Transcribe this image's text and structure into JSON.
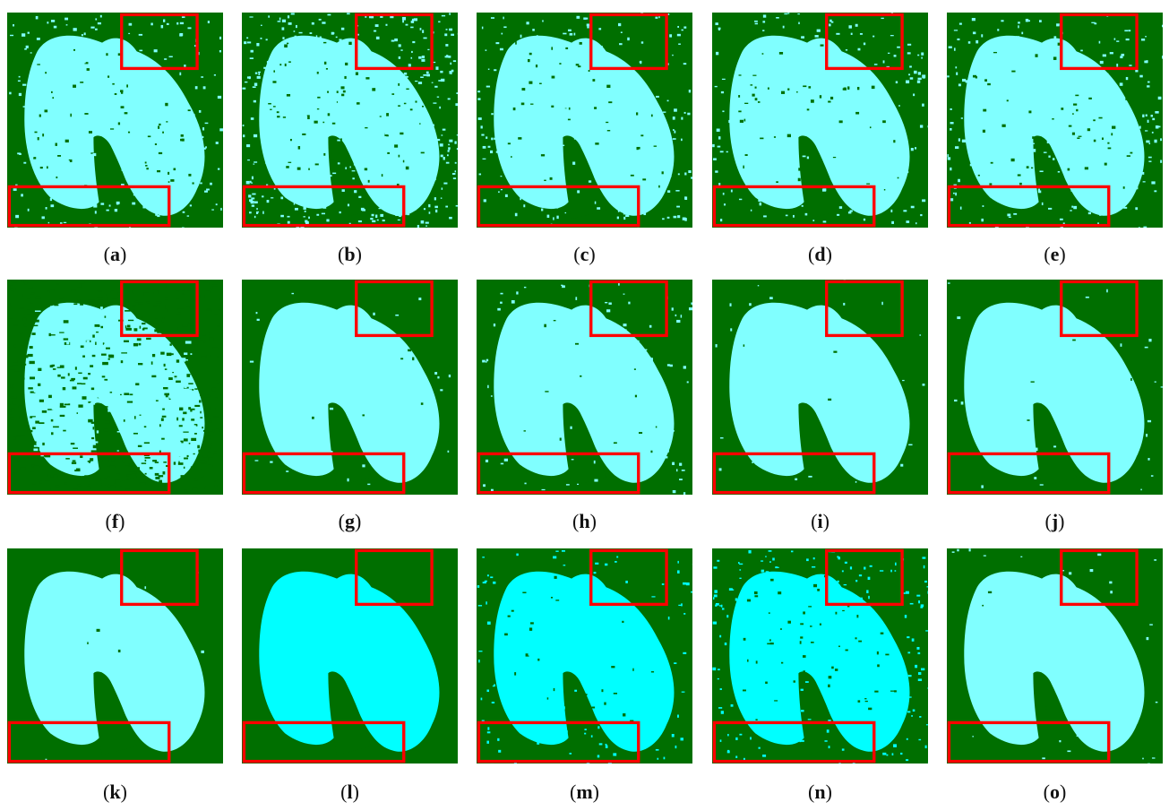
{
  "colors": {
    "land": "#006f00",
    "water_light": "#80ffff",
    "water_bright": "#00ffff",
    "highlight_box": "#ff0000",
    "caption_text": "#111111"
  },
  "panels": [
    {
      "letter": "a",
      "style": "noisy",
      "water": "light"
    },
    {
      "letter": "b",
      "style": "very-noisy",
      "water": "light"
    },
    {
      "letter": "c",
      "style": "noisy",
      "water": "light"
    },
    {
      "letter": "d",
      "style": "noisy",
      "water": "light"
    },
    {
      "letter": "e",
      "style": "noisy",
      "water": "light"
    },
    {
      "letter": "f",
      "style": "speckled",
      "water": "light"
    },
    {
      "letter": "g",
      "style": "clean",
      "water": "light"
    },
    {
      "letter": "h",
      "style": "slightly-noisy",
      "water": "light"
    },
    {
      "letter": "i",
      "style": "clean",
      "water": "light"
    },
    {
      "letter": "j",
      "style": "clean",
      "water": "light"
    },
    {
      "letter": "k",
      "style": "smooth",
      "water": "light"
    },
    {
      "letter": "l",
      "style": "very-smooth",
      "water": "bright"
    },
    {
      "letter": "m",
      "style": "edge-noise",
      "water": "bright"
    },
    {
      "letter": "n",
      "style": "noisy",
      "water": "bright"
    },
    {
      "letter": "o",
      "style": "clean",
      "water": "light"
    }
  ]
}
